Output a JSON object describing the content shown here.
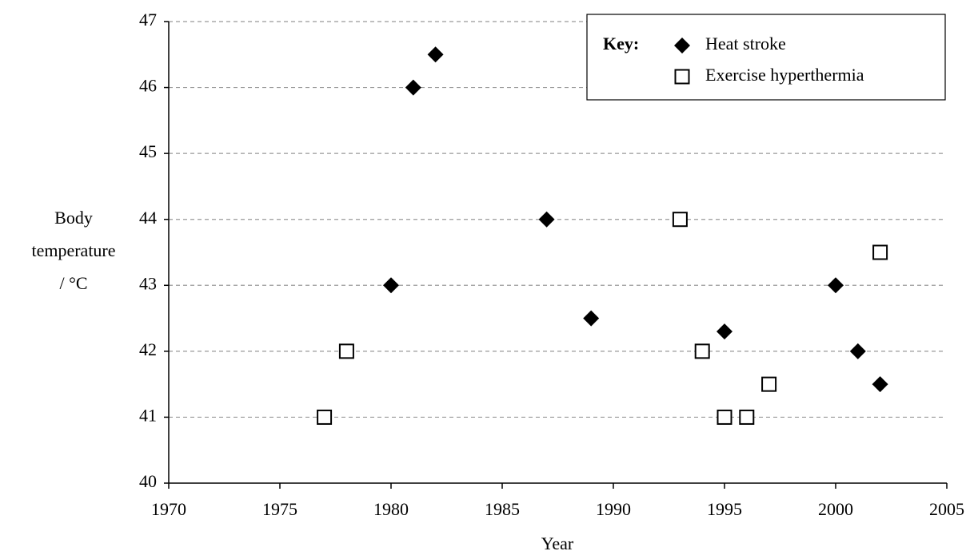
{
  "chart_data": {
    "type": "scatter",
    "xlabel": "Year",
    "ylabel": [
      "Body",
      "temperature",
      "/ °C"
    ],
    "legend_title": "Key:",
    "legend": "upper right",
    "grid": true,
    "xlim": [
      1970,
      2005
    ],
    "xticks": [
      1970,
      1975,
      1980,
      1985,
      1990,
      1995,
      2000,
      2005
    ],
    "ylim": [
      40,
      47
    ],
    "yticks": [
      40,
      41,
      42,
      43,
      44,
      45,
      46,
      47
    ],
    "series": [
      {
        "name": "Heat stroke",
        "color": "#000000",
        "marker": "diamond",
        "x": [
          1980,
          1981,
          1982,
          1987,
          1989,
          1995,
          2000,
          2001,
          2002
        ],
        "values": [
          43,
          46,
          46.5,
          44,
          42.5,
          42.3,
          43,
          42,
          41.5
        ]
      },
      {
        "name": "Exercise hyperthermia",
        "color": "#000000",
        "marker": "open-square",
        "x": [
          1977,
          1978,
          1993,
          1994,
          1995,
          1996,
          1997,
          2002
        ],
        "values": [
          41,
          42,
          44,
          42,
          41,
          41,
          41.5,
          43.5
        ]
      }
    ]
  }
}
